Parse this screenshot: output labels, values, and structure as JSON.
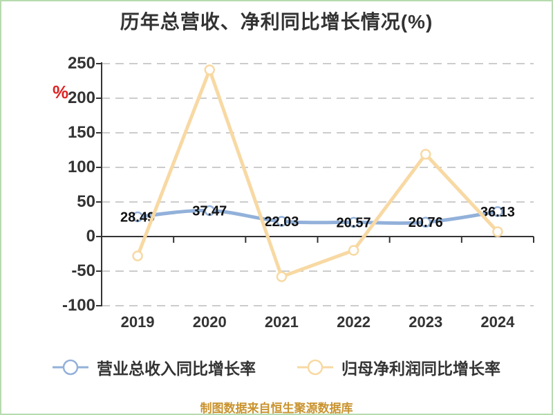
{
  "title": "历年总营收、净利同比增长情况(%)",
  "y_axis_unit": "%",
  "footer": "制图数据来自恒生聚源数据库",
  "legend": {
    "items": [
      {
        "label": "营业总收入同比增长率",
        "color": "#92b1da"
      },
      {
        "label": "归母净利润同比增长率",
        "color": "#f8d9a3"
      }
    ]
  },
  "colors": {
    "revenue_line": "#92b1da",
    "profit_line": "#f8d9a3",
    "title_text": "#333333",
    "axis_text": "#333333",
    "axis_line": "#333333",
    "grid_line": "#cccccc",
    "data_label": "#111111",
    "footer_text": "#c9932e",
    "unit_percent": "#e02222",
    "marker_fill": "#ffffff"
  },
  "chart_data": {
    "type": "line",
    "title": "历年总营收、净利同比增长情况(%)",
    "categories": [
      "2019",
      "2020",
      "2021",
      "2022",
      "2023",
      "2024"
    ],
    "series": [
      {
        "name": "营业总收入同比增长率",
        "color": "#92b1da",
        "smooth": true,
        "labeled": true,
        "values": [
          28.49,
          37.47,
          22.03,
          20.57,
          20.76,
          36.13
        ],
        "labels": [
          "28.49",
          "37.47",
          "22.03",
          "20.57",
          "20.76",
          "36.13"
        ]
      },
      {
        "name": "归母净利润同比增长率",
        "color": "#f8d9a3",
        "smooth": false,
        "labeled": false,
        "values": [
          -28,
          241,
          -58,
          -20,
          119,
          7
        ]
      }
    ],
    "y_ticks": [
      250,
      200,
      150,
      100,
      50,
      0,
      -50,
      -100
    ],
    "ylim": [
      -100,
      250
    ],
    "xlabel": "",
    "ylabel": "%",
    "grid": "horizontal-dashed",
    "legend_position": "bottom"
  }
}
